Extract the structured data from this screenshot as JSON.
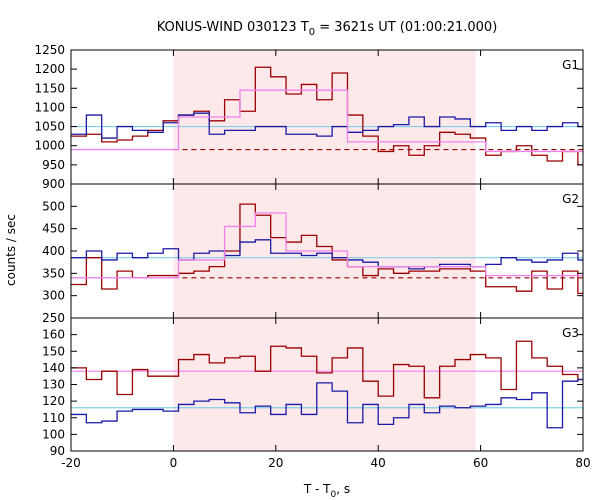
{
  "title_main": "KONUS-WIND 030123 T",
  "title_sub": "0",
  "title_rest": " = 3621s UT (01:00:21.000)",
  "ylabel": "counts / sec",
  "xlabel_main": "T - T",
  "xlabel_sub": "0",
  "xlabel_rest": ", s",
  "colors": {
    "shade": "#fde8ea",
    "dark_red": "#9b0000",
    "blue": "#1a1aa6",
    "pink": "#ee82ee",
    "cyan": "#7fd0e6",
    "axis": "#000000"
  },
  "chart_data": [
    {
      "type": "line",
      "panel": "G1",
      "label": "G1",
      "xlim": [
        -20,
        80
      ],
      "ylim": [
        900,
        1250
      ],
      "yticks": [
        900,
        950,
        1000,
        1050,
        1100,
        1150,
        1200,
        1250
      ],
      "xticks": [
        -20,
        0,
        20,
        40,
        60,
        80
      ],
      "shaded_interval": [
        0,
        59
      ],
      "grid": false,
      "edges": [
        -20,
        -17,
        -14,
        -11,
        -8,
        -5,
        -2,
        1,
        4,
        7,
        10,
        13,
        16,
        19,
        22,
        25,
        28,
        31,
        34,
        37,
        40,
        43,
        46,
        49,
        52,
        55,
        58,
        61,
        64,
        67,
        70,
        73,
        76,
        79,
        82
      ],
      "series": [
        {
          "color": "dark_red",
          "step": true,
          "values": [
            1025,
            1030,
            1010,
            1015,
            1025,
            1040,
            1065,
            1080,
            1090,
            1065,
            1120,
            1090,
            1205,
            1180,
            1135,
            1160,
            1120,
            1190,
            1080,
            1025,
            985,
            1000,
            975,
            1000,
            1035,
            1030,
            1020,
            975,
            985,
            1000,
            975,
            960,
            985,
            950
          ]
        },
        {
          "color": "blue",
          "step": true,
          "values": [
            1030,
            1080,
            1020,
            1050,
            1040,
            1035,
            1060,
            1080,
            1085,
            1030,
            1040,
            1040,
            1050,
            1050,
            1030,
            1030,
            1025,
            1050,
            1035,
            1040,
            1050,
            1055,
            1075,
            1050,
            1075,
            1070,
            1050,
            1060,
            1040,
            1050,
            1040,
            1050,
            1060,
            1050
          ]
        },
        {
          "color": "pink",
          "step": true,
          "values": [
            990,
            990,
            990,
            990,
            990,
            990,
            990,
            1075,
            1075,
            1075,
            1075,
            1145,
            1145,
            1145,
            1145,
            1145,
            1145,
            1145,
            1010,
            1010,
            1010,
            1010,
            1010,
            1010,
            1010,
            1010,
            1010,
            985,
            985,
            985,
            985,
            985,
            985,
            985
          ]
        },
        {
          "color": "cyan",
          "horizontal": 1050
        },
        {
          "color": "dark_red",
          "dashed": true,
          "horizontal": 990,
          "xrange": [
            0,
            80
          ]
        }
      ]
    },
    {
      "type": "line",
      "panel": "G2",
      "label": "G2",
      "xlim": [
        -20,
        80
      ],
      "ylim": [
        250,
        550
      ],
      "yticks": [
        250,
        300,
        350,
        400,
        450,
        500
      ],
      "xticks": [
        -20,
        0,
        20,
        40,
        60,
        80
      ],
      "shaded_interval": [
        0,
        59
      ],
      "grid": false,
      "edges": [
        -20,
        -17,
        -14,
        -11,
        -8,
        -5,
        -2,
        1,
        4,
        7,
        10,
        13,
        16,
        19,
        22,
        25,
        28,
        31,
        34,
        37,
        40,
        43,
        46,
        49,
        52,
        55,
        58,
        61,
        64,
        67,
        70,
        73,
        76,
        79,
        82
      ],
      "series": [
        {
          "color": "dark_red",
          "step": true,
          "values": [
            325,
            385,
            315,
            355,
            340,
            345,
            345,
            350,
            355,
            365,
            400,
            505,
            480,
            430,
            420,
            435,
            410,
            380,
            365,
            345,
            360,
            350,
            355,
            355,
            360,
            360,
            355,
            320,
            320,
            310,
            355,
            315,
            355,
            305
          ]
        },
        {
          "color": "blue",
          "step": true,
          "values": [
            385,
            400,
            380,
            395,
            385,
            395,
            405,
            380,
            395,
            400,
            390,
            420,
            425,
            395,
            395,
            390,
            395,
            385,
            380,
            375,
            365,
            365,
            360,
            365,
            370,
            370,
            365,
            370,
            385,
            380,
            375,
            380,
            395,
            380
          ]
        },
        {
          "color": "pink",
          "step": true,
          "values": [
            340,
            340,
            340,
            340,
            340,
            340,
            340,
            380,
            380,
            380,
            455,
            455,
            485,
            485,
            400,
            400,
            400,
            400,
            365,
            365,
            365,
            365,
            365,
            365,
            365,
            365,
            365,
            345,
            345,
            345,
            345,
            345,
            345,
            345
          ]
        },
        {
          "color": "cyan",
          "horizontal": 385
        },
        {
          "color": "dark_red",
          "dashed": true,
          "horizontal": 340,
          "xrange": [
            0,
            80
          ]
        }
      ]
    },
    {
      "type": "line",
      "panel": "G3",
      "label": "G3",
      "xlim": [
        -20,
        80
      ],
      "ylim": [
        90,
        170
      ],
      "yticks": [
        90,
        100,
        110,
        120,
        130,
        140,
        150,
        160
      ],
      "xticks": [
        -20,
        0,
        20,
        40,
        60,
        80
      ],
      "shaded_interval": [
        0,
        59
      ],
      "grid": false,
      "edges": [
        -20,
        -17,
        -14,
        -11,
        -8,
        -5,
        -2,
        1,
        4,
        7,
        10,
        13,
        16,
        19,
        22,
        25,
        28,
        31,
        34,
        37,
        40,
        43,
        46,
        49,
        52,
        55,
        58,
        61,
        64,
        67,
        70,
        73,
        76,
        79,
        82
      ],
      "series": [
        {
          "color": "dark_red",
          "step": true,
          "values": [
            140,
            133,
            138,
            124,
            139,
            135,
            135,
            145,
            148,
            143,
            146,
            147,
            138,
            153,
            152,
            147,
            137,
            146,
            152,
            132,
            123,
            142,
            141,
            122,
            141,
            145,
            148,
            146,
            127,
            156,
            146,
            141,
            136,
            133
          ]
        },
        {
          "color": "blue",
          "step": true,
          "values": [
            112,
            107,
            108,
            114,
            115,
            115,
            114,
            118,
            120,
            121,
            119,
            113,
            117,
            112,
            118,
            112,
            131,
            126,
            107,
            118,
            106,
            110,
            118,
            113,
            117,
            116,
            117,
            118,
            122,
            121,
            125,
            104,
            132,
            133
          ]
        },
        {
          "color": "pink",
          "horizontal": 138
        },
        {
          "color": "cyan",
          "horizontal": 116
        }
      ]
    }
  ]
}
